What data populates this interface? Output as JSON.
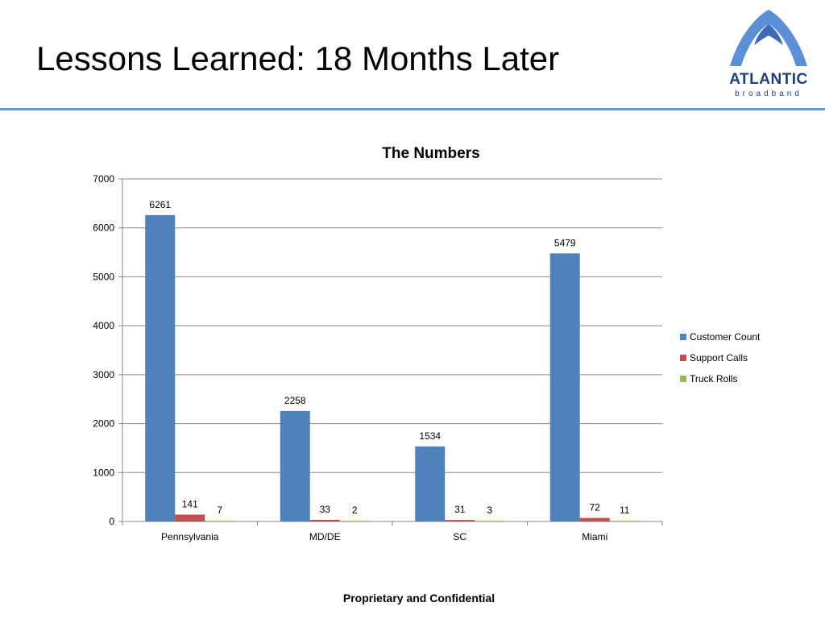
{
  "slide": {
    "title": "Lessons Learned: 18 Months Later",
    "footer": "Proprietary and Confidential"
  },
  "logo": {
    "name": "ATLANTIC",
    "sub": "broadband",
    "icon": "arch-logo-icon",
    "color": "#1f3f7a"
  },
  "chart_data": {
    "type": "bar",
    "title": "The Numbers",
    "categories": [
      "Pennsylvania",
      "MD/DE",
      "SC",
      "Miami"
    ],
    "series": [
      {
        "name": "Customer Count",
        "values": [
          6261,
          2258,
          1534,
          5479
        ],
        "color": "#4f81bd"
      },
      {
        "name": "Support Calls",
        "values": [
          141,
          33,
          31,
          72
        ],
        "color": "#c0504d"
      },
      {
        "name": "Truck Rolls",
        "values": [
          7,
          2,
          3,
          11
        ],
        "color": "#9bbb59"
      }
    ],
    "ylim": [
      0,
      7000
    ],
    "yticks": [
      0,
      1000,
      2000,
      3000,
      4000,
      5000,
      6000,
      7000
    ],
    "grid": true,
    "legend": "right",
    "data_labels": true
  }
}
